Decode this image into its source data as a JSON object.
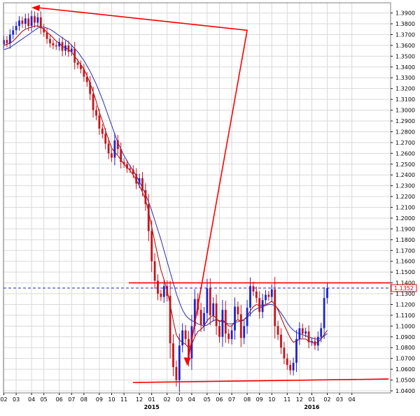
{
  "colors": {
    "background": "#ffffff",
    "grid": "#d9d9d9",
    "frame": "#7f7f7f",
    "bullish_candle": "#1e24c8",
    "bearish_candle": "#c4151c",
    "ma_fast": "#aa0000",
    "ma_slow": "#2b2bb0",
    "annotation": "#ff0000",
    "current_price_line": "#2020c0"
  },
  "chart_data": {
    "type": "candlestick",
    "title": "",
    "xlabel": "",
    "ylabel": "",
    "ylim": [
      1.04,
      1.4
    ],
    "grid": true,
    "y_ticks": [
      "1.0400",
      "1.0500",
      "1.0600",
      "1.0700",
      "1.0800",
      "1.0900",
      "1.1000",
      "1.1100",
      "1.1200",
      "1.1300",
      "1.1400",
      "1.1500",
      "1.1600",
      "1.1700",
      "1.1800",
      "1.1900",
      "1.2000",
      "1.2100",
      "1.2200",
      "1.2300",
      "1.2400",
      "1.2500",
      "1.2600",
      "1.2700",
      "1.2800",
      "1.2900",
      "1.3000",
      "1.3100",
      "1.3200",
      "1.3300",
      "1.3400",
      "1.3500",
      "1.3600",
      "1.3700",
      "1.3800",
      "1.3900"
    ],
    "x_ticks": [
      "02",
      "03",
      "04",
      "05",
      "06",
      "07",
      "08",
      "09",
      "10",
      "11",
      "12",
      "01",
      "02",
      "03",
      "04",
      "05",
      "06",
      "07",
      "08",
      "09",
      "10",
      "11",
      "12",
      "01",
      "02",
      "03",
      "04"
    ],
    "x_tick_weeks": [
      0,
      4,
      9,
      13,
      18,
      22,
      26,
      31,
      35,
      39,
      44,
      48,
      53,
      57,
      61,
      66,
      70,
      74,
      79,
      83,
      87,
      92,
      96,
      100,
      105,
      109,
      113
    ],
    "year_labels": [
      {
        "text": "2015",
        "week": 48
      },
      {
        "text": "2016",
        "week": 100
      }
    ],
    "last_price": "1.1352",
    "last_price_value": 1.1352,
    "weekly_close": [
      1.365,
      1.362,
      1.37,
      1.374,
      1.378,
      1.383,
      1.38,
      1.385,
      1.378,
      1.387,
      1.381,
      1.386,
      1.376,
      1.372,
      1.366,
      1.362,
      1.36,
      1.359,
      1.363,
      1.355,
      1.36,
      1.354,
      1.357,
      1.344,
      1.342,
      1.338,
      1.331,
      1.326,
      1.315,
      1.3,
      1.295,
      1.283,
      1.278,
      1.269,
      1.26,
      1.256,
      1.272,
      1.264,
      1.252,
      1.25,
      1.246,
      1.245,
      1.241,
      1.232,
      1.237,
      1.226,
      1.213,
      1.188,
      1.16,
      1.142,
      1.13,
      1.127,
      1.137,
      1.128,
      1.084,
      1.062,
      1.05,
      1.082,
      1.096,
      1.088,
      1.07,
      1.1,
      1.125,
      1.115,
      1.101,
      1.112,
      1.135,
      1.11,
      1.121,
      1.1,
      1.09,
      1.115,
      1.093,
      1.088,
      1.096,
      1.118,
      1.111,
      1.089,
      1.1,
      1.117,
      1.137,
      1.132,
      1.126,
      1.113,
      1.124,
      1.129,
      1.127,
      1.134,
      1.1,
      1.092,
      1.08,
      1.07,
      1.064,
      1.059,
      1.066,
      1.088,
      1.098,
      1.093,
      1.095,
      1.085,
      1.086,
      1.082,
      1.09,
      1.098,
      1.126,
      1.1352
    ],
    "ma_fast": [
      1.36,
      1.361,
      1.362,
      1.364,
      1.367,
      1.37,
      1.373,
      1.375,
      1.376,
      1.377,
      1.378,
      1.378,
      1.377,
      1.375,
      1.372,
      1.37,
      1.367,
      1.364,
      1.362,
      1.359,
      1.358,
      1.356,
      1.354,
      1.35,
      1.346,
      1.342,
      1.338,
      1.332,
      1.325,
      1.317,
      1.308,
      1.298,
      1.29,
      1.281,
      1.273,
      1.265,
      1.261,
      1.258,
      1.254,
      1.25,
      1.247,
      1.244,
      1.24,
      1.235,
      1.23,
      1.224,
      1.217,
      1.206,
      1.192,
      1.178,
      1.165,
      1.152,
      1.143,
      1.133,
      1.12,
      1.105,
      1.092,
      1.087,
      1.085,
      1.083,
      1.08,
      1.083,
      1.09,
      1.095,
      1.097,
      1.1,
      1.105,
      1.108,
      1.11,
      1.107,
      1.104,
      1.106,
      1.103,
      1.1,
      1.1,
      1.104,
      1.106,
      1.104,
      1.106,
      1.109,
      1.114,
      1.118,
      1.12,
      1.119,
      1.119,
      1.12,
      1.121,
      1.123,
      1.12,
      1.115,
      1.108,
      1.101,
      1.095,
      1.089,
      1.085,
      1.086,
      1.088,
      1.088,
      1.088,
      1.086,
      1.085,
      1.084,
      1.085,
      1.088,
      1.092,
      1.096
    ],
    "ma_slow": [
      1.356,
      1.357,
      1.358,
      1.36,
      1.362,
      1.364,
      1.366,
      1.368,
      1.37,
      1.372,
      1.374,
      1.376,
      1.377,
      1.377,
      1.376,
      1.375,
      1.373,
      1.371,
      1.369,
      1.367,
      1.365,
      1.363,
      1.36,
      1.357,
      1.354,
      1.35,
      1.346,
      1.341,
      1.336,
      1.33,
      1.324,
      1.317,
      1.31,
      1.302,
      1.294,
      1.286,
      1.278,
      1.27,
      1.264,
      1.258,
      1.253,
      1.248,
      1.244,
      1.239,
      1.234,
      1.228,
      1.222,
      1.215,
      1.207,
      1.198,
      1.189,
      1.18,
      1.17,
      1.16,
      1.15,
      1.14,
      1.13,
      1.122,
      1.115,
      1.11,
      1.107,
      1.105,
      1.104,
      1.102,
      1.101,
      1.1,
      1.101,
      1.103,
      1.105,
      1.106,
      1.105,
      1.104,
      1.103,
      1.102,
      1.102,
      1.103,
      1.104,
      1.105,
      1.106,
      1.108,
      1.111,
      1.114,
      1.116,
      1.117,
      1.118,
      1.119,
      1.12,
      1.12,
      1.119,
      1.116,
      1.112,
      1.108,
      1.103,
      1.099,
      1.096,
      1.094,
      1.093,
      1.092,
      1.091,
      1.09,
      1.089,
      1.088,
      1.088,
      1.089,
      1.091,
      1.093
    ],
    "annotations": {
      "resistance_level": 1.14,
      "support_level": 1.049,
      "triangle": {
        "apex_top": {
          "week": 9,
          "value": 1.395
        },
        "upper_right": {
          "week": 79,
          "value": 1.374
        },
        "bottom": {
          "week": 60,
          "value": 1.071
        }
      }
    }
  }
}
